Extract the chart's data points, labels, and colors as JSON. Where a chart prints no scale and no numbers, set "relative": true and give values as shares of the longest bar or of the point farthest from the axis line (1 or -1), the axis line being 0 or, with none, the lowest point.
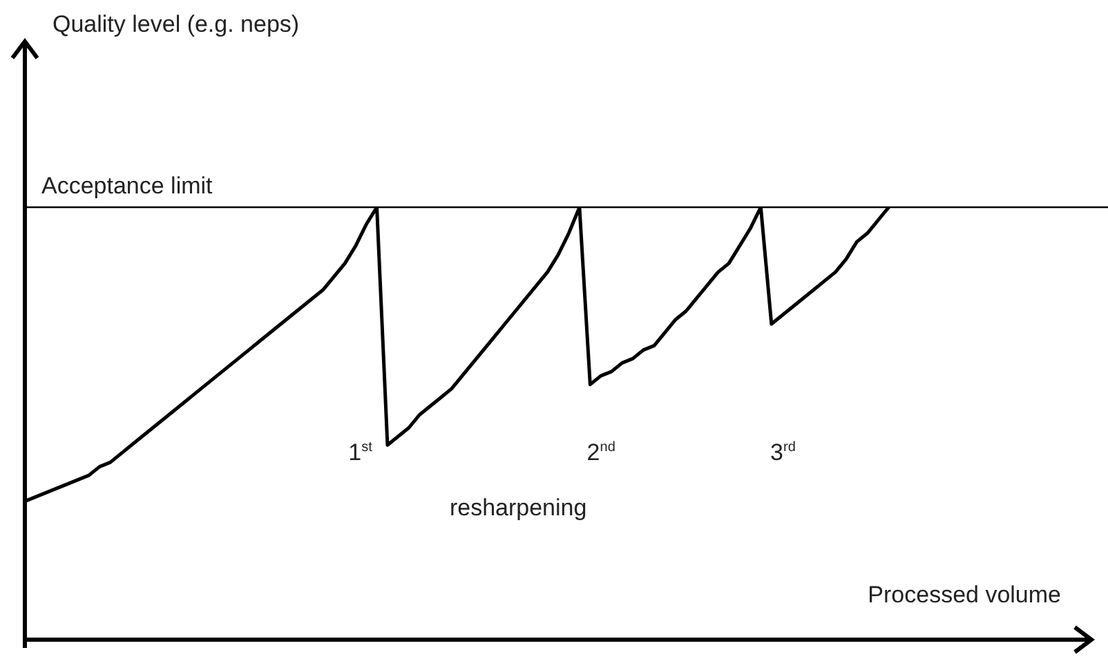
{
  "chart_data": {
    "type": "line",
    "relative": true,
    "xlabel": "Processed volume",
    "categories": [
      null,
      null,
      null,
      null,
      null,
      null,
      null,
      null,
      null,
      null,
      null,
      null,
      null,
      null,
      null,
      null,
      null,
      null,
      null,
      null,
      null,
      null,
      null,
      null,
      null,
      null,
      null,
      null,
      null,
      null,
      null,
      null,
      null,
      null,
      null,
      null,
      null,
      null,
      null,
      null,
      null,
      null,
      null,
      null,
      null,
      null,
      null,
      null,
      null,
      null,
      null,
      null,
      null,
      null,
      null,
      null,
      null,
      null,
      null,
      null,
      null,
      null,
      null,
      null,
      null,
      null,
      null,
      null,
      null,
      null,
      null,
      null,
      null,
      null,
      null,
      null,
      null,
      null,
      null,
      null,
      null,
      null,
      null,
      null,
      null,
      null,
      null,
      null,
      null,
      null,
      null,
      null,
      null,
      null,
      null,
      null,
      null,
      null,
      null,
      null,
      null
    ],
    "series": [
      {
        "color": "#000000",
        "values": [
          0.32,
          0.33,
          0.34,
          0.35,
          0.36,
          0.37,
          0.38,
          0.4,
          0.41,
          0.43,
          0.45,
          0.47,
          0.49,
          0.51,
          0.53,
          0.55,
          0.57,
          0.59,
          0.61,
          0.63,
          0.65,
          0.67,
          0.69,
          0.71,
          0.73,
          0.75,
          0.77,
          0.79,
          0.81,
          0.84,
          0.87,
          0.91,
          0.96,
          1,
          0.45,
          0.47,
          0.49,
          0.52,
          0.54,
          0.56,
          0.58,
          0.61,
          0.64,
          0.67,
          0.7,
          0.73,
          0.76,
          0.79,
          0.82,
          0.85,
          0.89,
          0.94,
          1,
          0.59,
          0.61,
          0.62,
          0.64,
          0.65,
          0.67,
          0.68,
          0.71,
          0.74,
          0.76,
          0.79,
          0.82,
          0.85,
          0.87,
          0.91,
          0.95,
          1,
          0.73,
          0.75,
          0.77,
          0.79,
          0.81,
          0.83,
          0.85,
          0.88,
          0.92,
          0.94,
          0.97,
          1,
          null,
          null,
          null,
          null,
          null,
          null,
          null,
          null,
          null,
          null,
          null,
          null,
          null,
          null,
          null,
          null,
          null,
          null,
          null
        ]
      }
    ],
    "ref_lines": [
      {
        "axis": "y",
        "value": 1,
        "label": "Acceptance limit",
        "color": "#000000"
      }
    ],
    "annotations": [
      "1$^{st}$",
      "2$^{nd}$",
      "3$^{rd}$",
      "resharpening",
      "Quality level (e.g. neps)"
    ],
    "legend": false
  }
}
